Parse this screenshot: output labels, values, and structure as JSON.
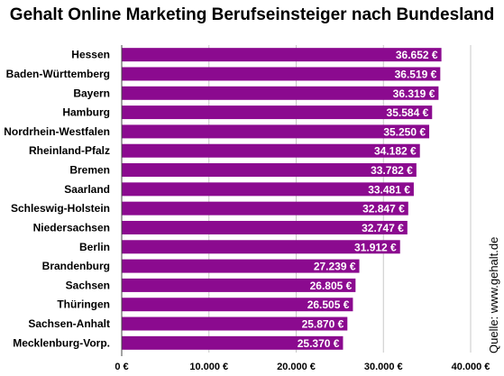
{
  "chart_data": {
    "type": "bar",
    "orientation": "horizontal",
    "title": "Gehalt Online Marketing Berufseinsteiger nach Bundesland",
    "categories": [
      "Hessen",
      "Baden-Württemberg",
      "Bayern",
      "Hamburg",
      "Nordrhein-Westfalen",
      "Rheinland-Pfalz",
      "Bremen",
      "Saarland",
      "Schleswig-Holstein",
      "Niedersachsen",
      "Berlin",
      "Brandenburg",
      "Sachsen",
      "Thüringen",
      "Sachsen-Anhalt",
      "Mecklenburg-Vorp."
    ],
    "values": [
      36652,
      36519,
      36319,
      35584,
      35250,
      34182,
      33782,
      33481,
      32847,
      32747,
      31912,
      27239,
      26805,
      26505,
      25870,
      25370
    ],
    "value_labels": [
      "36.652 €",
      "36.519 €",
      "36.319 €",
      "35.584 €",
      "35.250 €",
      "34.182 €",
      "33.782 €",
      "33.481 €",
      "32.847 €",
      "32.747 €",
      "31.912 €",
      "27.239 €",
      "26.805 €",
      "26.505 €",
      "25.870 €",
      "25.370 €"
    ],
    "xlim": [
      0,
      40000
    ],
    "xticks": [
      0,
      10000,
      20000,
      30000,
      40000
    ],
    "xtick_labels": [
      "0 €",
      "10.000 €",
      "20.000 €",
      "30.000 €",
      "40.000 €"
    ],
    "xlabel": "",
    "ylabel": "",
    "grid": "vertical",
    "bar_color": "#8b0a8f",
    "source": "Quelle: www.gehalt.de"
  }
}
